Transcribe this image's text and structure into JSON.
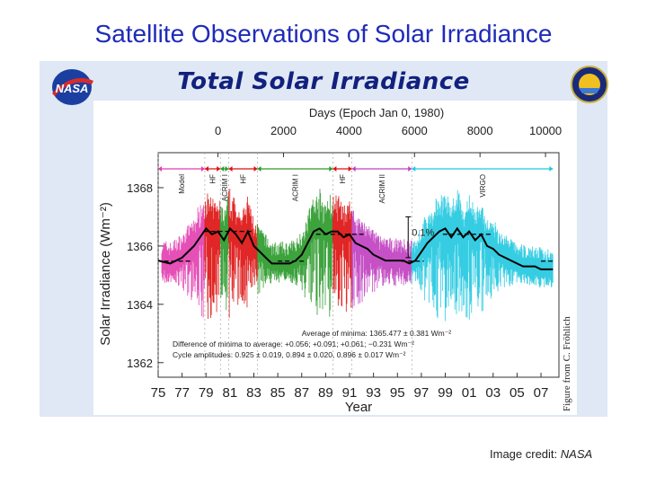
{
  "slide": {
    "title": "Satellite Observations of Solar Irradiance",
    "credit_label": "Image credit:",
    "credit_source": "NASA"
  },
  "figure": {
    "heading": "Total Solar Irradiance",
    "logos": [
      "NASA",
      "SORCE"
    ],
    "side_credit": "Figure from C. Fröhlich"
  },
  "chart_data": {
    "type": "line",
    "xlabel": "Year",
    "ylabel": "Solar Irradiance (Wm⁻²)",
    "top_axis_label": "Days (Epoch Jan 0, 1980)",
    "x_ticks": [
      "75",
      "77",
      "79",
      "81",
      "83",
      "85",
      "87",
      "89",
      "91",
      "93",
      "95",
      "97",
      "99",
      "01",
      "03",
      "05",
      "07"
    ],
    "x_tick_years": [
      1975,
      1977,
      1979,
      1981,
      1983,
      1985,
      1987,
      1989,
      1991,
      1993,
      1995,
      1997,
      1999,
      2001,
      2003,
      2005,
      2007
    ],
    "top_ticks": [
      "0",
      "2000",
      "4000",
      "6000",
      "8000",
      "10000"
    ],
    "top_tick_days": [
      0,
      2000,
      4000,
      6000,
      8000,
      10000
    ],
    "y_ticks": [
      "1362",
      "1364",
      "1366",
      "1368"
    ],
    "y_tick_values": [
      1362,
      1364,
      1366,
      1368
    ],
    "ylim": [
      1361.5,
      1369.2
    ],
    "xlim": [
      1975,
      2008.5
    ],
    "instruments": [
      {
        "name": "Model",
        "start": 1975,
        "end": 1978.9,
        "color": "#e23fb0"
      },
      {
        "name": "HF",
        "start": 1978.9,
        "end": 1980.2,
        "color": "#d11"
      },
      {
        "name": "ACRIM I",
        "start": 1980.2,
        "end": 1980.9,
        "color": "#2a9a2a"
      },
      {
        "name": "HF",
        "start": 1980.9,
        "end": 1983.3,
        "color": "#d11"
      },
      {
        "name": "ACRIM I",
        "start": 1983.3,
        "end": 1989.6,
        "color": "#2a9a2a"
      },
      {
        "name": "HF",
        "start": 1989.6,
        "end": 1991.2,
        "color": "#d11"
      },
      {
        "name": "ACRIM II",
        "start": 1991.2,
        "end": 1996.2,
        "color": "#c040c0"
      },
      {
        "name": "VIRGO",
        "start": 1996.2,
        "end": 2008,
        "color": "#22c8e0"
      }
    ],
    "annotations": {
      "percent_bar": "0.1%",
      "stats_line1": "Average of minima: 1365.477 ± 0.381 Wm⁻²",
      "stats_line2": "Difference of minima to average: +0.056; +0.091; +0.061; −0.231 Wm⁻²",
      "stats_line3": "Cycle amplitudes: 0.925 ± 0.019, 0.894 ± 0.020, 0.896 ± 0.017 Wm⁻²"
    },
    "composite": {
      "name": "composite",
      "x": [
        1975.0,
        1976.0,
        1977.0,
        1978.0,
        1978.5,
        1979.0,
        1979.5,
        1980.0,
        1980.5,
        1981.0,
        1981.5,
        1982.0,
        1982.5,
        1983.0,
        1983.5,
        1984.0,
        1984.5,
        1985.0,
        1985.5,
        1986.0,
        1986.5,
        1987.0,
        1987.5,
        1988.0,
        1988.5,
        1989.0,
        1989.5,
        1990.0,
        1990.5,
        1991.0,
        1991.5,
        1992.0,
        1992.5,
        1993.0,
        1993.5,
        1994.0,
        1994.5,
        1995.0,
        1995.5,
        1996.0,
        1996.5,
        1997.0,
        1997.5,
        1998.0,
        1998.5,
        1999.0,
        1999.5,
        2000.0,
        2000.5,
        2001.0,
        2001.5,
        2002.0,
        2002.5,
        2003.0,
        2003.5,
        2004.0,
        2004.5,
        2005.0,
        2005.5,
        2006.0,
        2006.5,
        2007.0,
        2007.5,
        2008.0
      ],
      "y": [
        1365.5,
        1365.4,
        1365.6,
        1366.0,
        1366.3,
        1366.6,
        1366.4,
        1366.5,
        1366.2,
        1366.6,
        1366.4,
        1366.1,
        1366.5,
        1366.0,
        1365.8,
        1365.6,
        1365.4,
        1365.4,
        1365.4,
        1365.4,
        1365.5,
        1365.7,
        1366.1,
        1366.5,
        1366.6,
        1366.4,
        1366.5,
        1366.5,
        1366.3,
        1366.4,
        1366.1,
        1366.0,
        1365.9,
        1365.7,
        1365.6,
        1365.5,
        1365.5,
        1365.5,
        1365.5,
        1365.4,
        1365.5,
        1365.8,
        1366.1,
        1366.3,
        1366.5,
        1366.6,
        1366.3,
        1366.6,
        1366.3,
        1366.5,
        1366.2,
        1366.4,
        1366.0,
        1365.9,
        1365.7,
        1365.6,
        1365.5,
        1365.4,
        1365.3,
        1365.3,
        1365.3,
        1365.2,
        1365.2,
        1365.2
      ]
    },
    "minima_level": 1365.48,
    "minima_segments": [
      [
        1975.5,
        1977.8
      ],
      [
        1985.0,
        1987.2
      ],
      [
        1995.3,
        1997.2
      ],
      [
        2007.0,
        2008.2
      ]
    ],
    "maxima_segments": [
      [
        1978.8,
        1983.0,
        1366.5
      ],
      [
        1988.2,
        1992.2,
        1366.4
      ],
      [
        1998.8,
        2003.0,
        1366.4
      ]
    ],
    "grid": false,
    "legend": "none"
  }
}
